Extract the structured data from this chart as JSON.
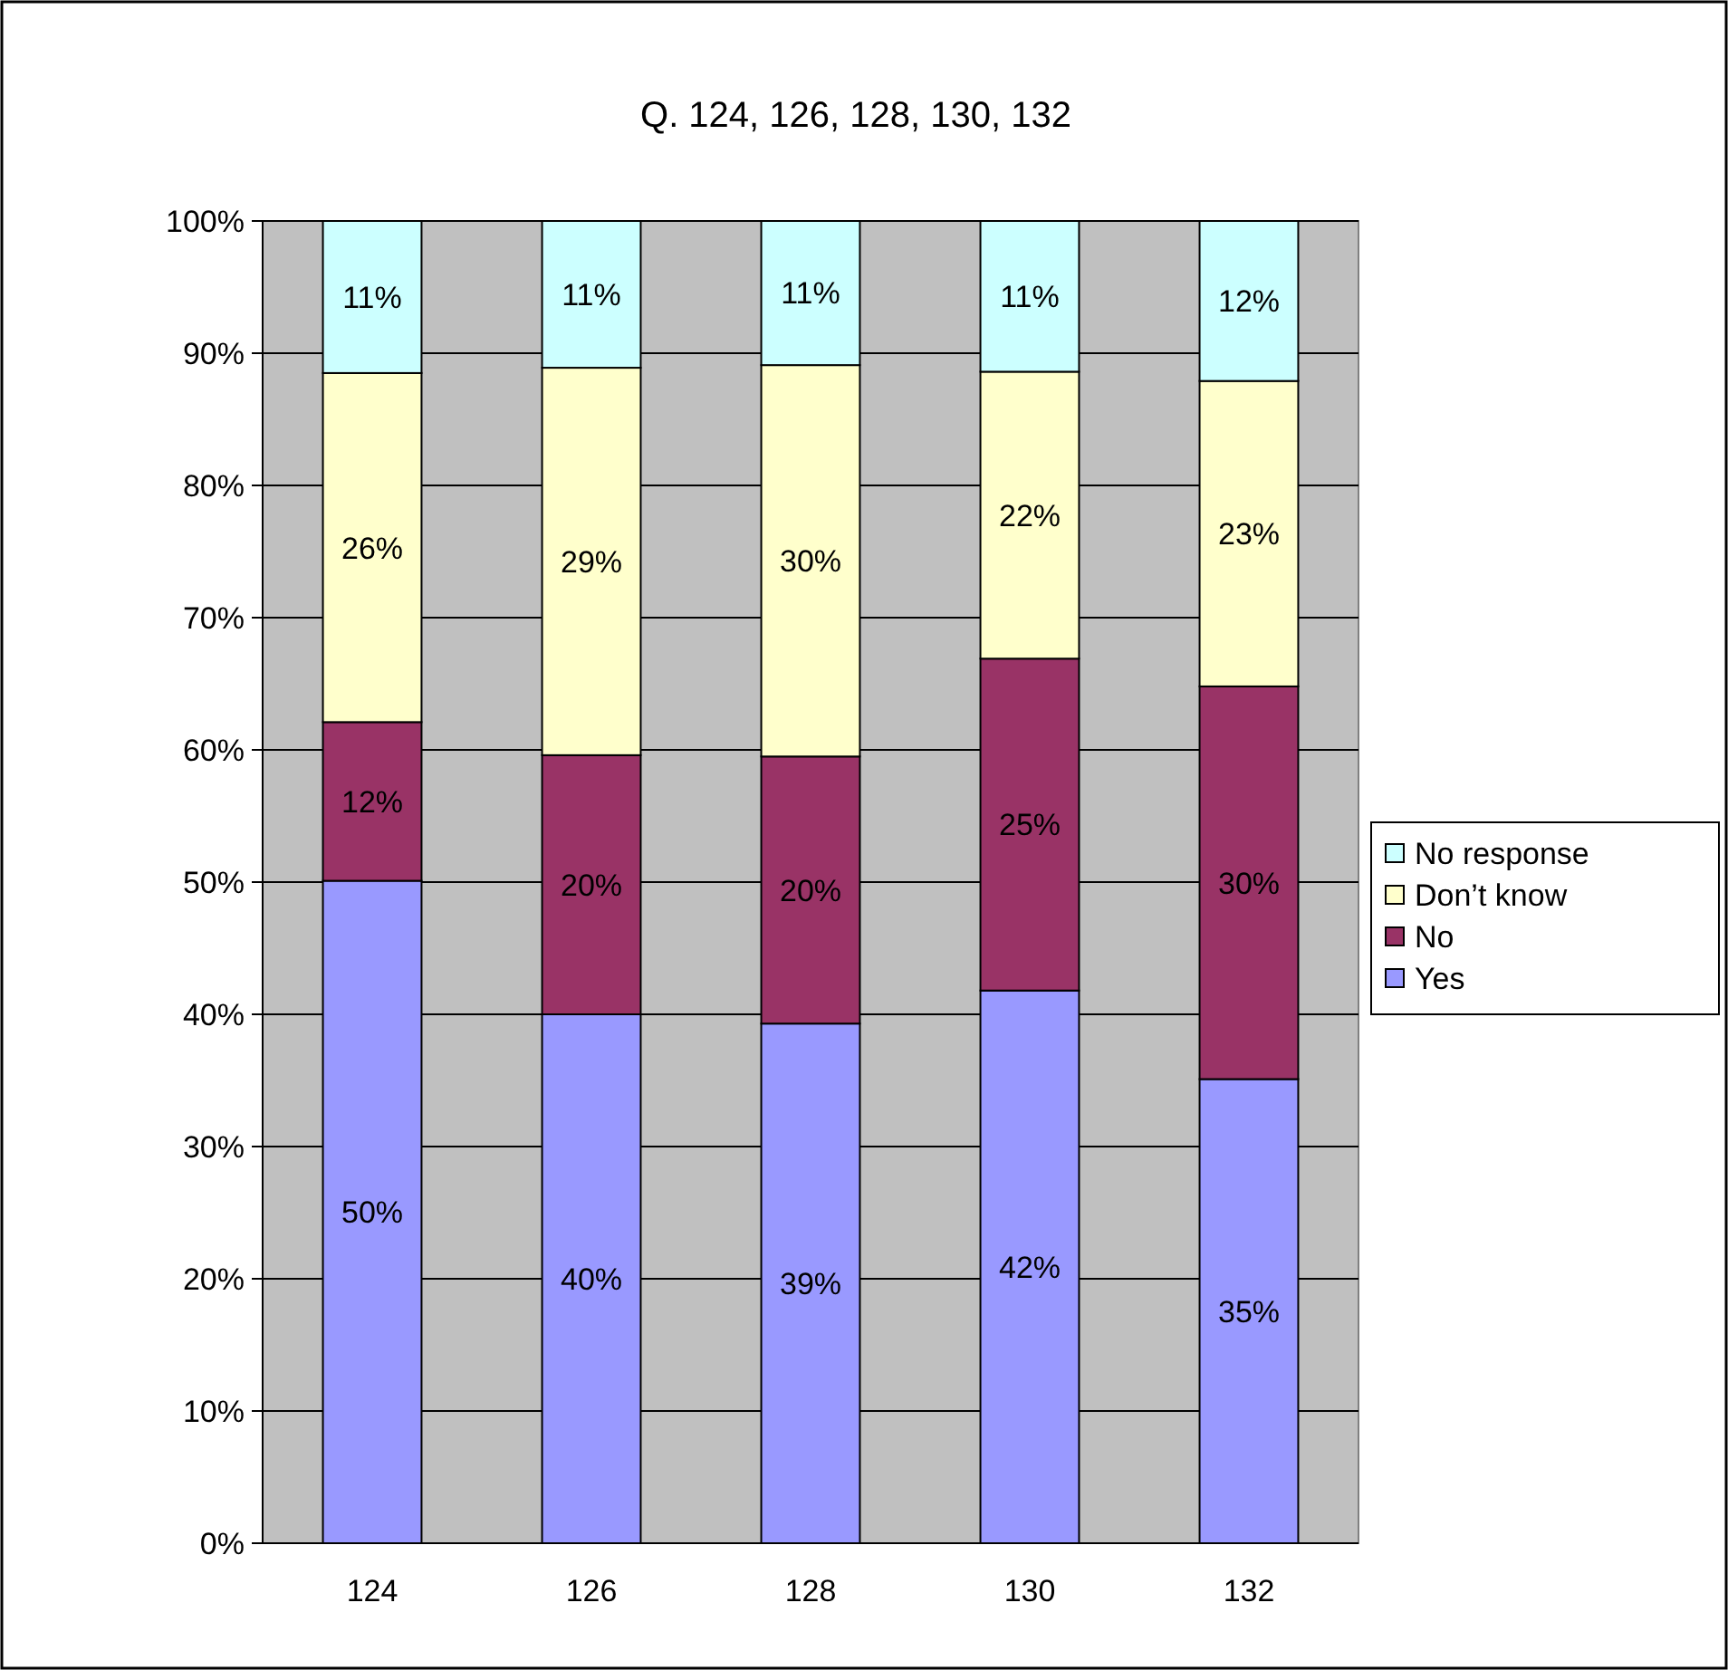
{
  "chart_data": {
    "type": "bar",
    "title": "Q. 124, 126, 128, 130, 132",
    "categories": [
      "124",
      "126",
      "128",
      "130",
      "132"
    ],
    "stacked": true,
    "ylim": [
      0,
      100
    ],
    "yticks": [
      {
        "value": 0,
        "label": "0%"
      },
      {
        "value": 10,
        "label": "10%"
      },
      {
        "value": 20,
        "label": "20%"
      },
      {
        "value": 30,
        "label": "30%"
      },
      {
        "value": 40,
        "label": "40%"
      },
      {
        "value": 50,
        "label": "50%"
      },
      {
        "value": 60,
        "label": "60%"
      },
      {
        "value": 70,
        "label": "70%"
      },
      {
        "value": 80,
        "label": "80%"
      },
      {
        "value": 90,
        "label": "90%"
      },
      {
        "value": 100,
        "label": "100%"
      }
    ],
    "grid": "y",
    "legend": "right",
    "series": [
      {
        "name": "Yes",
        "color": "#9999ff",
        "values": [
          50.1,
          40,
          39.3,
          41.8,
          35.1
        ],
        "value_labels": [
          "50%",
          "40%",
          "39%",
          "42%",
          "35%"
        ]
      },
      {
        "name": "No",
        "color": "#993366",
        "values": [
          12,
          19.6,
          20.2,
          25.1,
          29.7
        ],
        "value_labels": [
          "12%",
          "20%",
          "20%",
          "25%",
          "30%"
        ]
      },
      {
        "name": "Don’t know",
        "color": "#ffffcc",
        "values": [
          26.4,
          29.3,
          29.6,
          21.7,
          23.1
        ],
        "value_labels": [
          "26%",
          "29%",
          "30%",
          "22%",
          "23%"
        ]
      },
      {
        "name": "No response",
        "color": "#ccffff",
        "values": [
          11.5,
          11.1,
          10.9,
          11.4,
          12.1
        ],
        "value_labels": [
          "11%",
          "11%",
          "11%",
          "11%",
          "12%"
        ]
      }
    ]
  }
}
